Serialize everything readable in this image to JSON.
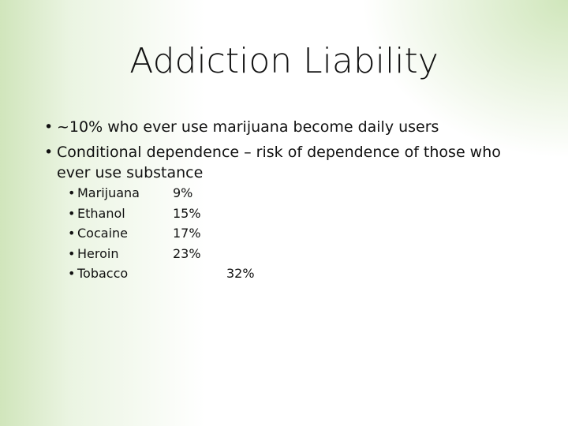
{
  "title": "Addiction Liability",
  "bullets": [
    "~10% who ever use marijuana become daily users",
    "Conditional dependence – risk of dependence of those who ever use substance"
  ],
  "sub_items": [
    {
      "label": "Marijuana",
      "value": "9%"
    },
    {
      "label": "Ethanol",
      "value": "15%"
    },
    {
      "label": "Cocaine",
      "value": "17%"
    },
    {
      "label": "Heroin",
      "value": "23%"
    },
    {
      "label": "Tobacco",
      "value": "32%"
    }
  ]
}
